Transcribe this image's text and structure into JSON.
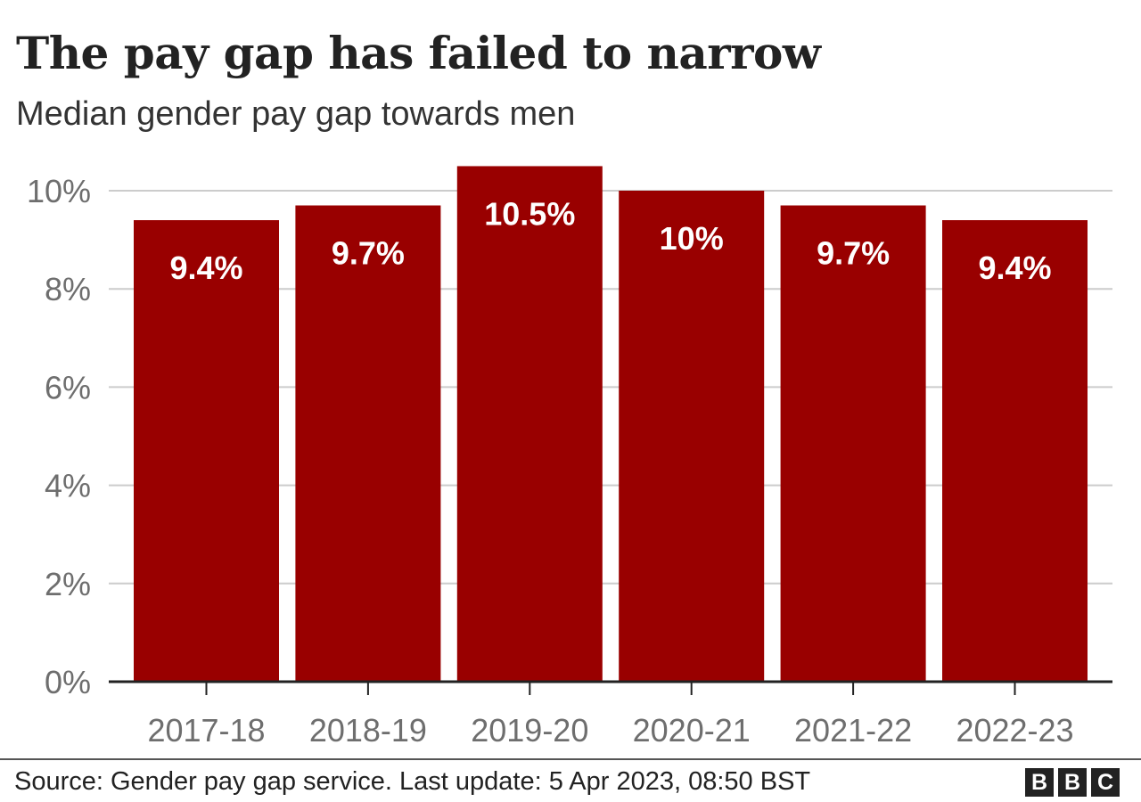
{
  "header": {
    "title": "The pay gap has failed to narrow",
    "subtitle": "Median gender pay gap towards men"
  },
  "footer": {
    "source": "Source: Gender pay gap service. Last update: 5 Apr 2023, 08:50 BST",
    "logo_letters": [
      "B",
      "B",
      "C"
    ]
  },
  "colors": {
    "bar": "#990000",
    "bar_label": "#ffffff",
    "grid": "#cccccc",
    "axis": "#222222",
    "tick_label": "#6e6e6e",
    "text": "#222222"
  },
  "chart_data": {
    "type": "bar",
    "title": "The pay gap has failed to narrow",
    "subtitle": "Median gender pay gap towards men",
    "categories": [
      "2017-18",
      "2018-19",
      "2019-20",
      "2020-21",
      "2021-22",
      "2022-23"
    ],
    "values": [
      9.4,
      9.7,
      10.5,
      10,
      9.7,
      9.4
    ],
    "data_labels": [
      "9.4%",
      "9.7%",
      "10.5%",
      "10%",
      "9.7%",
      "9.4%"
    ],
    "y_ticks": [
      0,
      2,
      4,
      6,
      8,
      10
    ],
    "y_tick_labels": [
      "0%",
      "2%",
      "4%",
      "6%",
      "8%",
      "10%"
    ],
    "ylim": [
      0,
      10.5
    ],
    "xlabel": "",
    "ylabel": "",
    "grid": true,
    "legend": "none"
  }
}
